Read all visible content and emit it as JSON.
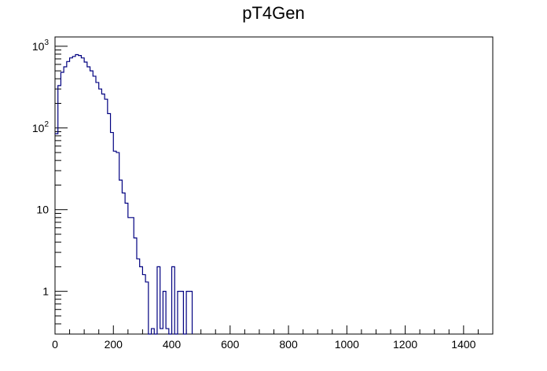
{
  "chart_data": {
    "type": "histogram",
    "title": "pT4Gen",
    "xlabel": "",
    "ylabel": "",
    "xlim": [
      0,
      1500
    ],
    "ylim": [
      0.3,
      1300
    ],
    "y_scale": "log",
    "bin_width": 10,
    "grid": false,
    "line_color": "#000080",
    "x_ticks": [
      {
        "value": 0,
        "label": "0"
      },
      {
        "value": 200,
        "label": "200"
      },
      {
        "value": 400,
        "label": "400"
      },
      {
        "value": 600,
        "label": "600"
      },
      {
        "value": 800,
        "label": "800"
      },
      {
        "value": 1000,
        "label": "1000"
      },
      {
        "value": 1200,
        "label": "1200"
      },
      {
        "value": 1400,
        "label": "1400"
      }
    ],
    "y_ticks": [
      {
        "value": 1,
        "label": "1",
        "exp": ""
      },
      {
        "value": 10,
        "label": "10",
        "exp": ""
      },
      {
        "value": 100,
        "label": "10",
        "exp": "2"
      },
      {
        "value": 1000,
        "label": "10",
        "exp": "3"
      }
    ],
    "values": [
      85,
      330,
      480,
      560,
      650,
      720,
      750,
      790,
      770,
      720,
      640,
      560,
      500,
      430,
      360,
      300,
      260,
      225,
      150,
      88,
      52,
      50,
      23,
      16,
      12,
      8,
      8,
      4.5,
      2.5,
      2.0,
      1.6,
      1.3,
      0,
      0.35,
      0,
      2.0,
      0.35,
      1.0,
      0.35,
      0,
      2.0,
      0,
      1.0,
      1.0,
      0,
      1.0,
      1.0
    ]
  }
}
